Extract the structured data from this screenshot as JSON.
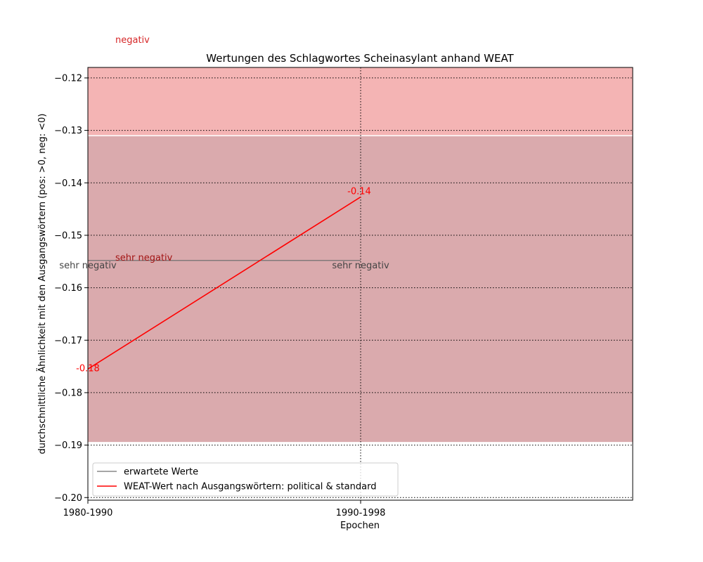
{
  "chart_data": {
    "type": "line",
    "title": "Wertungen des Schlagwortes Scheinasylant anhand WEAT",
    "xlabel": "Epochen",
    "ylabel": "durchschnittliche Ähnlichkeit mit den Ausgangswörtern (pos: >0, neg: <0)",
    "categories": [
      "1980-1990",
      "1990-1998"
    ],
    "ylim": [
      -0.2005,
      -0.118
    ],
    "yticks": [
      -0.12,
      -0.13,
      -0.14,
      -0.15,
      -0.16,
      -0.17,
      -0.18,
      -0.19,
      -0.2
    ],
    "ytick_labels": [
      "−0.12",
      "−0.13",
      "−0.14",
      "−0.15",
      "−0.16",
      "−0.17",
      "−0.18",
      "−0.19",
      "−0.20"
    ],
    "grid": true,
    "legend_position": "lower-left",
    "bands": [
      {
        "label": "negativ",
        "from": -0.131,
        "to": -0.118,
        "color": "#f4b4b4",
        "label_color": "#d62728"
      },
      {
        "label": "sehr negativ",
        "from": -0.1895,
        "to": -0.131,
        "color": "#daaaad",
        "label_color": "#a31515"
      }
    ],
    "series": [
      {
        "name": "erwartete Werte",
        "color": "#707070",
        "values": [
          -0.1548,
          -0.1548
        ],
        "point_labels": [
          "sehr negativ",
          "sehr negativ"
        ],
        "label_color": "#444444"
      },
      {
        "name": "WEAT-Wert nach Ausgangswörtern: political & standard",
        "color": "#ff0000",
        "values": [
          -0.1755,
          -0.1427
        ],
        "point_labels": [
          "-0.18",
          "-0.14"
        ],
        "label_color": "#ff0000"
      }
    ]
  }
}
